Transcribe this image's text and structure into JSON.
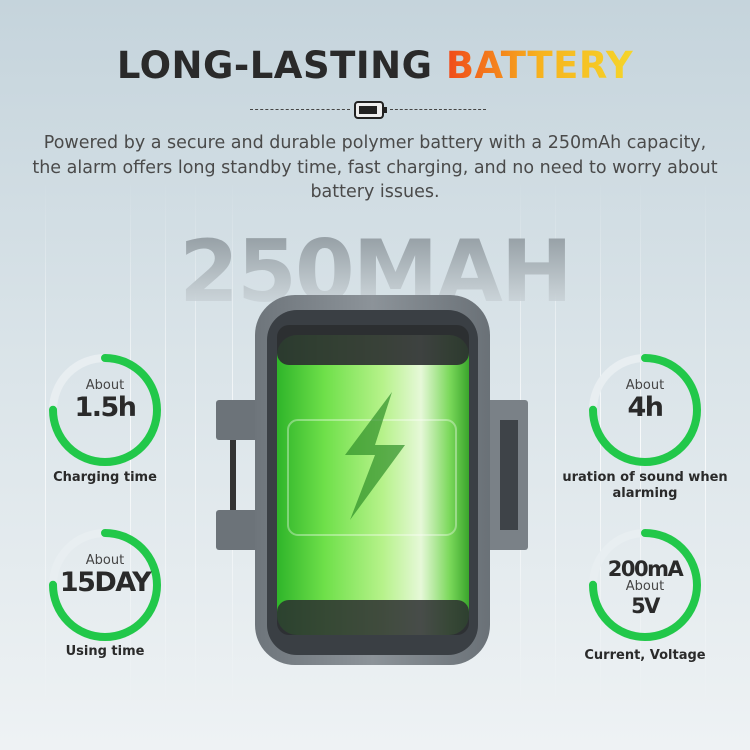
{
  "header": {
    "title_dark": "LONG-LASTING",
    "title_highlight": "BATTERY",
    "description": "Powered by a secure and durable polymer battery with a 250mAh capacity, the alarm offers long standby time, fast charging, and no need to worry about battery issues.",
    "divider_icon": "battery-icon"
  },
  "hero_text": "250MAH",
  "colors": {
    "ring": "#22c84a",
    "ring_track": "#e8eef1",
    "highlight_start": "#f04a1a",
    "highlight_end": "#f5d52a"
  },
  "stats": [
    {
      "about": "About",
      "value": "1.5h",
      "label": "Charging time",
      "ring_fill": 0.75
    },
    {
      "about": "About",
      "value": "15DAY",
      "label": "Using time",
      "ring_fill": 0.75
    },
    {
      "about": "About",
      "value": "4h",
      "label": "uration of sound when alarming",
      "ring_fill": 0.75
    },
    {
      "value_top": "200mA",
      "about": "About",
      "value": "5V",
      "label": "Current, Voltage",
      "ring_fill": 0.75
    }
  ]
}
